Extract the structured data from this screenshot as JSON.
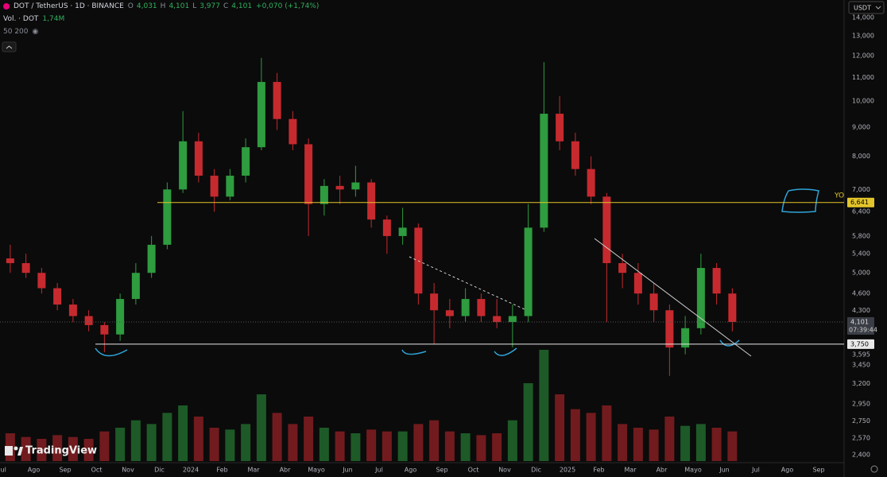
{
  "header": {
    "symbol": "DOT / TetherUS · 1D · BINANCE",
    "ohlc": [
      {
        "label": "O",
        "value": "4,031"
      },
      {
        "label": "H",
        "value": "4,101"
      },
      {
        "label": "L",
        "value": "3,977"
      },
      {
        "label": "C",
        "value": "4,101"
      }
    ],
    "change": "+0,070 (+1,74%)",
    "volume_label": "Vol. · DOT",
    "volume_value": "1,74M",
    "ma_label": "50 200",
    "currency": "USDT",
    "countdown": "07:39:44",
    "brand": "TradingView"
  },
  "chart_data": {
    "type": "candlestick",
    "log_scale": true,
    "grid": false,
    "up_color": "#2e9c3f",
    "down_color": "#c62a2f",
    "categories": [
      "Jul",
      null,
      "Ago",
      null,
      "Sep",
      null,
      "Oct",
      null,
      "Nov",
      null,
      "Dic",
      null,
      "2024",
      null,
      "Feb",
      null,
      "Mar",
      null,
      "Abr",
      null,
      "Mayo",
      null,
      "Jun",
      null,
      "Jul",
      null,
      "Ago",
      null,
      "Sep",
      null,
      "Oct",
      null,
      "Nov",
      null,
      "Dic",
      null,
      "2025",
      null,
      "Feb",
      null,
      "Mar",
      null,
      "Abr",
      null,
      "Mayo",
      null,
      "Jun",
      null,
      "Jul",
      null,
      "Ago",
      null,
      "Sep"
    ],
    "open": [
      5.3,
      5.2,
      5.0,
      4.7,
      4.4,
      4.2,
      4.05,
      3.9,
      4.5,
      5.0,
      5.6,
      7.0,
      8.5,
      7.4,
      6.8,
      7.4,
      8.3,
      10.8,
      9.3,
      8.4,
      6.6,
      7.1,
      7.0,
      7.2,
      6.2,
      5.8,
      6.0,
      4.6,
      4.3,
      4.2,
      4.5,
      4.2,
      4.1,
      4.2,
      6.0,
      9.5,
      8.5,
      7.6,
      6.8,
      5.2,
      5.0,
      4.6,
      4.3,
      3.7,
      4.0,
      5.1,
      4.6,
      null,
      null,
      null,
      null,
      null,
      null
    ],
    "high": [
      5.6,
      5.4,
      5.1,
      4.8,
      4.5,
      4.3,
      4.1,
      4.6,
      5.2,
      5.8,
      7.2,
      9.6,
      8.8,
      7.6,
      7.6,
      8.6,
      11.9,
      11.2,
      9.6,
      8.6,
      7.3,
      7.4,
      7.7,
      7.3,
      6.3,
      6.5,
      6.1,
      4.8,
      4.5,
      4.7,
      4.6,
      4.5,
      4.4,
      6.6,
      11.7,
      10.2,
      8.8,
      8.0,
      6.9,
      5.4,
      5.2,
      4.8,
      4.4,
      4.2,
      5.4,
      5.2,
      4.7,
      null,
      null,
      null,
      null,
      null,
      null
    ],
    "low": [
      5.0,
      4.9,
      4.6,
      4.3,
      4.1,
      3.95,
      3.63,
      3.8,
      4.4,
      4.9,
      5.5,
      6.9,
      7.2,
      6.4,
      6.7,
      7.2,
      8.2,
      8.9,
      8.2,
      5.8,
      6.3,
      6.6,
      6.8,
      6.0,
      5.4,
      5.6,
      4.4,
      3.75,
      4.0,
      4.1,
      4.1,
      4.0,
      3.7,
      4.1,
      5.9,
      8.2,
      7.4,
      6.6,
      4.1,
      4.7,
      4.4,
      4.1,
      3.3,
      3.6,
      3.9,
      4.4,
      3.95,
      null,
      null,
      null,
      null,
      null,
      null
    ],
    "close": [
      5.2,
      5.0,
      4.7,
      4.4,
      4.2,
      4.05,
      3.9,
      4.5,
      5.0,
      5.6,
      7.0,
      8.5,
      7.4,
      6.8,
      7.4,
      8.3,
      10.8,
      9.3,
      8.4,
      6.6,
      7.1,
      7.0,
      7.2,
      6.2,
      5.8,
      6.0,
      4.6,
      4.3,
      4.2,
      4.5,
      4.2,
      4.1,
      4.2,
      6.0,
      9.5,
      8.5,
      7.6,
      6.8,
      5.2,
      5.0,
      4.6,
      4.3,
      3.7,
      4.0,
      5.1,
      4.6,
      4.101,
      null,
      null,
      null,
      null,
      null,
      null
    ],
    "volume": [
      1.5,
      1.3,
      1.2,
      1.4,
      1.3,
      1.2,
      1.6,
      1.8,
      2.2,
      2.0,
      2.6,
      3.0,
      2.4,
      1.8,
      1.7,
      2.0,
      3.6,
      2.6,
      2.0,
      2.4,
      1.8,
      1.6,
      1.5,
      1.7,
      1.6,
      1.6,
      2.0,
      2.2,
      1.6,
      1.5,
      1.4,
      1.5,
      2.2,
      4.2,
      6.0,
      3.6,
      2.8,
      2.6,
      3.0,
      2.0,
      1.8,
      1.7,
      2.4,
      1.9,
      2.0,
      1.8,
      1.6,
      null,
      null,
      null,
      null,
      null,
      null
    ],
    "ylim": [
      2.34,
      15.03
    ],
    "yticks": [
      {
        "value": 14,
        "label": "14,000"
      },
      {
        "value": 13,
        "label": "13,000"
      },
      {
        "value": 12,
        "label": "12,000"
      },
      {
        "value": 11,
        "label": "11,000"
      },
      {
        "value": 10,
        "label": "10,000"
      },
      {
        "value": 9,
        "label": "9,000"
      },
      {
        "value": 8,
        "label": "8,000"
      },
      {
        "value": 7,
        "label": "7,000"
      },
      {
        "value": 6.4,
        "label": "6,400"
      },
      {
        "value": 5.8,
        "label": "5,800"
      },
      {
        "value": 5.4,
        "label": "5,400"
      },
      {
        "value": 5,
        "label": "5,000"
      },
      {
        "value": 4.6,
        "label": "4,600"
      },
      {
        "value": 4.3,
        "label": "4,300"
      },
      {
        "value": 3.595,
        "label": "3,595"
      },
      {
        "value": 3.45,
        "label": "3,450"
      },
      {
        "value": 3.2,
        "label": "3,200"
      },
      {
        "value": 2.95,
        "label": "2,950"
      },
      {
        "value": 2.75,
        "label": "2,750"
      },
      {
        "value": 2.57,
        "label": "2,570"
      },
      {
        "value": 2.4,
        "label": "2,400"
      }
    ],
    "price_lines": [
      {
        "value": 6.641,
        "label": "6,641",
        "color": "#e3c52b"
      },
      {
        "value": 3.75,
        "label": "3,750",
        "color": "#e8e8e8"
      },
      {
        "value": 4.101,
        "label": "4,101",
        "color": "#3a3d45"
      }
    ],
    "annotations": [
      {
        "text": "YO"
      }
    ]
  }
}
